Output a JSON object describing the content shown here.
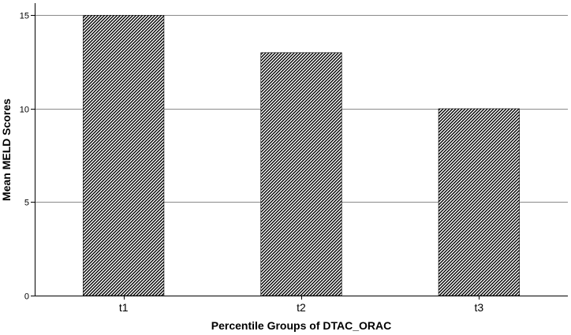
{
  "chart_data": {
    "type": "bar",
    "categories": [
      "t1",
      "t2",
      "t3"
    ],
    "values": [
      15,
      13,
      10
    ],
    "xlabel": "Percentile Groups of DTAC_ORAC",
    "ylabel": "Mean MELD Scores",
    "ylim": [
      0,
      15.65
    ],
    "yticks": [
      0,
      5,
      10,
      15
    ],
    "grid": "horizontal",
    "bar_fill": "diagonal-hatch",
    "colors": {
      "bar_hatch": "#000000",
      "bar_background": "#ffffff",
      "bar_outline": "#000000",
      "gridline": "#8a8a8a",
      "axis": "#000000"
    }
  }
}
